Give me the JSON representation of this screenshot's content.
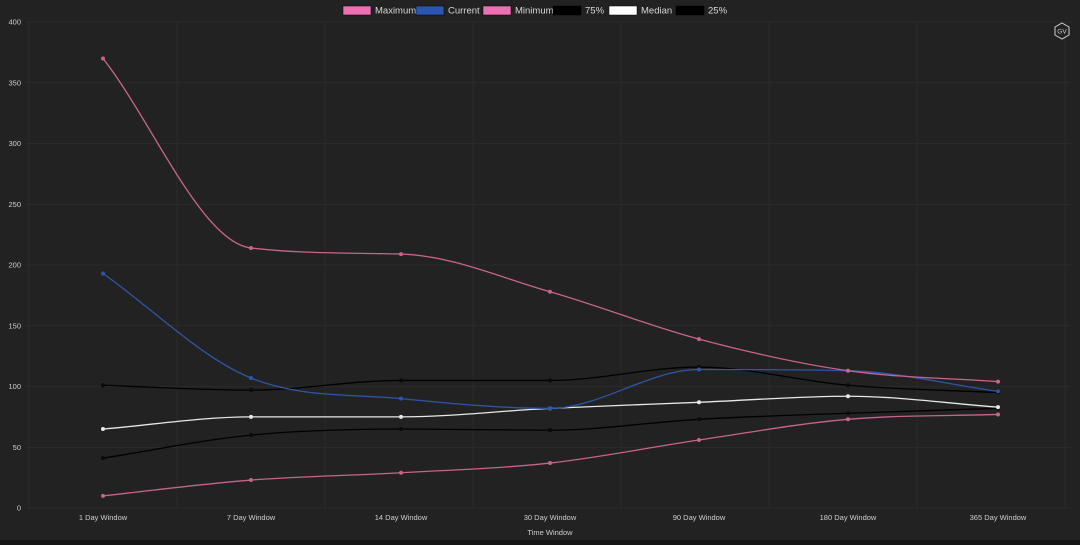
{
  "badge": {
    "text": "GV"
  },
  "colors": {
    "background": "#222222",
    "grid": "#333333",
    "text": "#cfcfcf"
  },
  "chart_data": {
    "type": "line",
    "title": "",
    "xlabel": "Time Window",
    "ylabel": "",
    "ylim": [
      0,
      400
    ],
    "yticks": [
      0,
      50,
      100,
      150,
      200,
      250,
      300,
      350,
      400
    ],
    "legend_position": "top-center",
    "grid": true,
    "categories": [
      "1 Day Window",
      "7 Day Window",
      "14 Day Window",
      "30 Day Window",
      "90 Day Window",
      "180 Day Window",
      "365 Day Window"
    ],
    "series": [
      {
        "name": "Maximum",
        "color": "#c8638c",
        "legend_color": "#ec6fb2",
        "values": [
          370,
          214,
          209,
          178,
          139,
          113,
          104
        ]
      },
      {
        "name": "Current",
        "color": "#2e56a6",
        "legend_color": "#2a55b0",
        "values": [
          193,
          107,
          90,
          82,
          114,
          113,
          96
        ]
      },
      {
        "name": "Minimum",
        "color": "#c8638c",
        "legend_color": "#ec6fb2",
        "values": [
          10,
          23,
          29,
          37,
          56,
          73,
          77
        ]
      },
      {
        "name": "75%",
        "color": "#000000",
        "legend_color": "#000000",
        "values": [
          101,
          97,
          105,
          105,
          116,
          101,
          95
        ]
      },
      {
        "name": "Median",
        "color": "#e8e8e8",
        "legend_color": "#ffffff",
        "values": [
          65,
          75,
          75,
          82,
          87,
          92,
          83
        ]
      },
      {
        "name": "25%",
        "color": "#000000",
        "legend_color": "#000000",
        "values": [
          41,
          60,
          65,
          64,
          73,
          78,
          82
        ]
      }
    ]
  }
}
